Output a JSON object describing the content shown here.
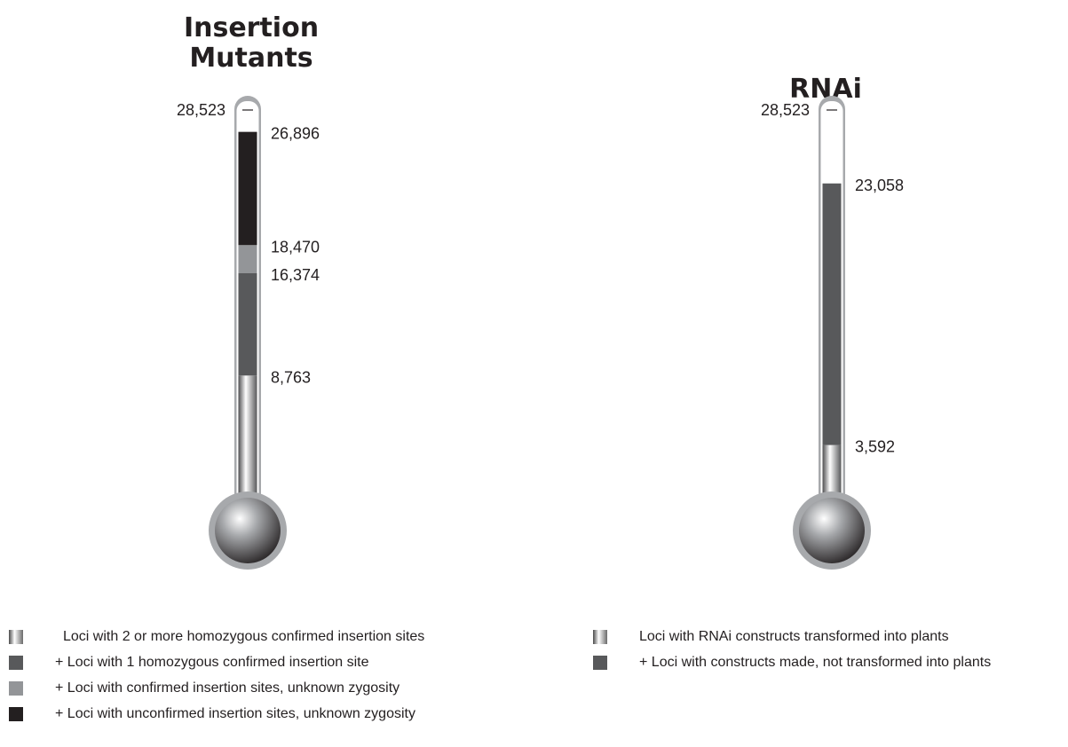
{
  "titles": {
    "left_line1": "Insertion",
    "left_line2": "Mutants",
    "right": "RNAi"
  },
  "colors": {
    "outline": "#a7a9ac",
    "unconfirmed": "#231f20",
    "confirmed_unknown": "#939598",
    "one_homozygous": "#58595b",
    "text": "#231f20"
  },
  "chart_data": [
    {
      "type": "bar",
      "subtype": "thermometer",
      "title": "Insertion Mutants",
      "max": 28523,
      "max_label": "28,523",
      "segments": [
        {
          "name": "Loci with 2 or more homozygous confirmed insertion sites",
          "top": 8763,
          "label": "8,763",
          "fill": "gradient"
        },
        {
          "name": "+ Loci with 1 homozygous confirmed insertion site",
          "top": 16374,
          "label": "16,374",
          "fill": "#58595b"
        },
        {
          "name": "+ Loci with confirmed insertion sites, unknown zygosity",
          "top": 18470,
          "label": "18,470",
          "fill": "#939598"
        },
        {
          "name": "+ Loci with unconfirmed insertion sites, unknown zygosity",
          "top": 26896,
          "label": "26,896",
          "fill": "#231f20"
        }
      ]
    },
    {
      "type": "bar",
      "subtype": "thermometer",
      "title": "RNAi",
      "max": 28523,
      "max_label": "28,523",
      "segments": [
        {
          "name": "Loci with RNAi constructs transformed into plants",
          "top": 3592,
          "label": "3,592",
          "fill": "gradient"
        },
        {
          "name": "+ Loci with constructs made, not transformed into plants",
          "top": 23058,
          "label": "23,058",
          "fill": "#58595b"
        }
      ]
    }
  ],
  "legend_left": [
    {
      "label": "Loci with 2 or more homozygous confirmed insertion sites",
      "swatch": "gradient"
    },
    {
      "label": "+ Loci with 1 homozygous confirmed insertion site",
      "swatch": "#58595b"
    },
    {
      "label": "+ Loci with confirmed insertion sites, unknown zygosity",
      "swatch": "#939598"
    },
    {
      "label": "+ Loci with unconfirmed insertion sites, unknown zygosity",
      "swatch": "#231f20"
    }
  ],
  "legend_right": [
    {
      "label": "Loci with RNAi constructs transformed into plants",
      "swatch": "gradient"
    },
    {
      "label": "+ Loci with constructs made, not transformed into plants",
      "swatch": "#58595b"
    }
  ]
}
